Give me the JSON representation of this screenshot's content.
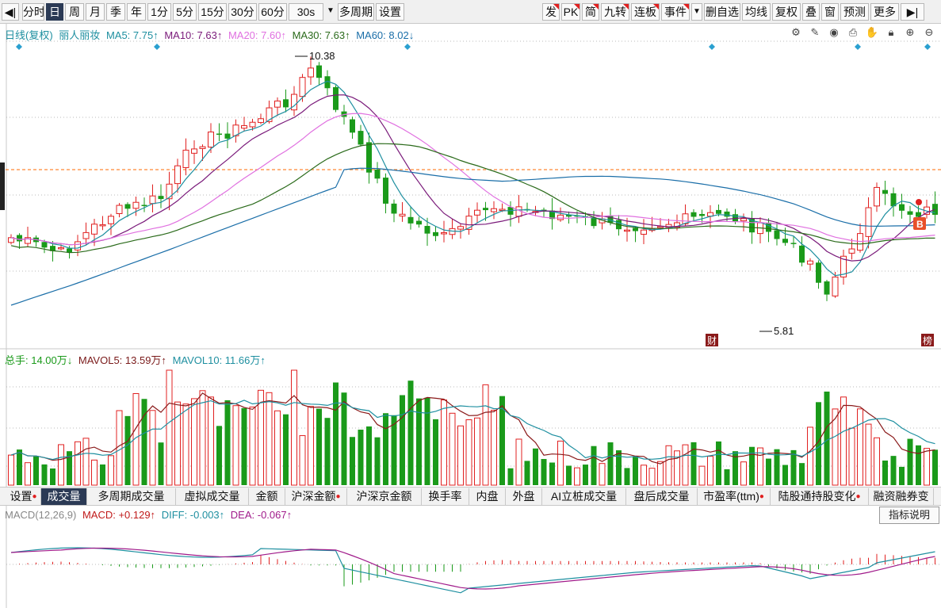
{
  "toolbar": {
    "pin_left": "◀|",
    "left_items": [
      {
        "label": "分时",
        "active": false
      },
      {
        "label": "日",
        "active": true
      },
      {
        "label": "周",
        "active": false
      },
      {
        "label": "月",
        "active": false
      },
      {
        "label": "季",
        "active": false
      },
      {
        "label": "年",
        "active": false
      },
      {
        "label": "1分",
        "active": false
      },
      {
        "label": "5分",
        "active": false
      },
      {
        "label": "15分",
        "active": false
      },
      {
        "label": "30分",
        "active": false
      },
      {
        "label": "60分",
        "active": false
      },
      {
        "label": "30s",
        "active": false
      },
      {
        "label": "▼",
        "active": false
      },
      {
        "label": "多周期",
        "active": false
      },
      {
        "label": "设置",
        "active": false
      }
    ],
    "right_items": [
      {
        "label": "发",
        "mark": true
      },
      {
        "label": "PK",
        "mark": true
      },
      {
        "label": "简",
        "mark": true
      },
      {
        "label": "九转",
        "mark": true
      },
      {
        "label": "连板",
        "mark": true
      },
      {
        "label": "事件",
        "mark": true
      },
      {
        "label": "▼",
        "mark": false
      },
      {
        "label": "删自选",
        "mark": false
      },
      {
        "label": "均线",
        "mark": false
      },
      {
        "label": "复权",
        "mark": false
      },
      {
        "label": "叠",
        "mark": false
      },
      {
        "label": "窗",
        "mark": false
      },
      {
        "label": "预测",
        "mark": false
      },
      {
        "label": "更多",
        "mark": false
      },
      {
        "label": "▶|",
        "mark": false
      }
    ]
  },
  "price_header": {
    "period": "日线(复权)",
    "stock_name": "丽人丽妆",
    "ma5": "MA5: 7.75↑",
    "ma10": "MA10: 7.63↑",
    "ma20": "MA20: 7.60↑",
    "ma30": "MA30: 7.63↑",
    "ma60": "MA60: 8.02↓"
  },
  "price_icons": [
    "settings-icon",
    "pen-icon",
    "eye-icon",
    "print-icon",
    "hand-icon",
    "lock-icon",
    "zoom-in-icon",
    "zoom-out-icon"
  ],
  "price_annotations": {
    "high": "10.38",
    "low": "5.81",
    "finance_badge": "财",
    "rank_badge": "榜",
    "buy_badge": "B"
  },
  "volume_header": {
    "total": "总手: 14.00万↓",
    "mavol5": "MAVOL5: 13.59万↑",
    "mavol10": "MAVOL10: 11.66万↑"
  },
  "indicator_tabs": [
    {
      "label": "设置",
      "dot": true,
      "active": false
    },
    {
      "label": "成交量",
      "dot": false,
      "active": true
    },
    {
      "label": "多周期成交量",
      "dot": false,
      "active": false
    },
    {
      "label": "虚拟成交量",
      "dot": false,
      "active": false
    },
    {
      "label": "金额",
      "dot": false,
      "active": false
    },
    {
      "label": "沪深金额",
      "dot": true,
      "active": false
    },
    {
      "label": "沪深京金额",
      "dot": false,
      "active": false
    },
    {
      "label": "换手率",
      "dot": false,
      "active": false
    },
    {
      "label": "内盘",
      "dot": false,
      "active": false
    },
    {
      "label": "外盘",
      "dot": false,
      "active": false
    },
    {
      "label": "AI立桩成交量",
      "dot": false,
      "active": false
    },
    {
      "label": "盘后成交量",
      "dot": false,
      "active": false
    },
    {
      "label": "市盈率(ttm)",
      "dot": true,
      "active": false
    },
    {
      "label": "陆股通持股变化",
      "dot": true,
      "active": false
    },
    {
      "label": "融资融券变",
      "dot": false,
      "active": false
    }
  ],
  "macd_header": {
    "name": "MACD(12,26,9)",
    "macd": "MACD: +0.129↑",
    "diff": "DIFF: -0.003↑",
    "dea": "DEA: -0.067↑"
  },
  "explain_button": "指标说明",
  "colors": {
    "up": "#e02020",
    "down": "#1a9a1a",
    "ma5": "#1e8fa0",
    "ma10": "#7a1a7a",
    "ma20": "#e070e0",
    "ma30": "#2a6a1a",
    "ma60": "#1a6ea8",
    "dashed_price": "#ff6a00"
  }
}
